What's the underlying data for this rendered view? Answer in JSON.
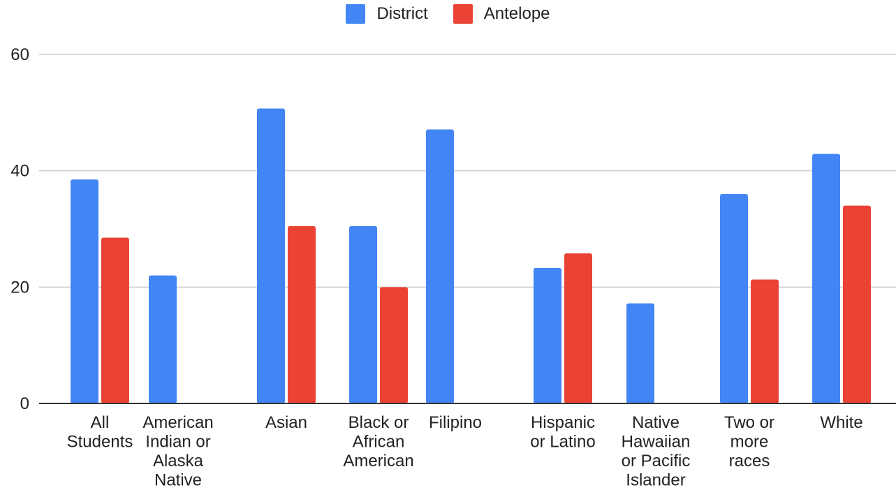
{
  "chart_data": {
    "type": "bar",
    "categories": [
      [
        "All",
        "Students"
      ],
      [
        "American",
        "Indian or",
        "Alaska",
        "Native"
      ],
      [
        "Asian"
      ],
      [
        "Black or",
        "African",
        "American"
      ],
      [
        "Filipino"
      ],
      [
        "Hispanic",
        "or Latino"
      ],
      [
        "Native",
        "Hawaiian",
        "or Pacific",
        "Islander"
      ],
      [
        "Two or",
        "more",
        "races"
      ],
      [
        "White"
      ]
    ],
    "series": [
      {
        "name": "District",
        "color": "#4285F4",
        "values": [
          38.5,
          22.0,
          50.7,
          30.5,
          47.1,
          23.3,
          17.2,
          36.0,
          42.9
        ]
      },
      {
        "name": "Antelope",
        "color": "#EA4335",
        "values": [
          28.5,
          null,
          30.5,
          20.0,
          null,
          25.8,
          null,
          21.3,
          34.0
        ]
      }
    ],
    "ylim": [
      0,
      60
    ],
    "yticks": [
      "0",
      "20",
      "40",
      "60"
    ],
    "grid": true,
    "legend_position": "top-center"
  }
}
